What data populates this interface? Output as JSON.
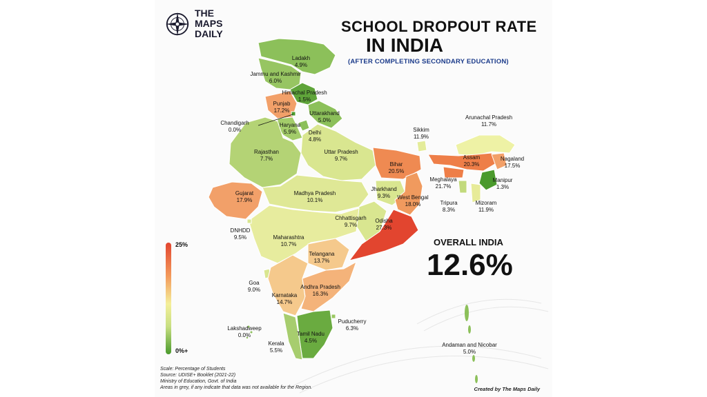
{
  "brand": {
    "name": "THE MAPS DAILY",
    "icon": "compass-icon"
  },
  "title": {
    "line1": "SCHOOL DROPOUT RATE",
    "line2": "IN INDIA",
    "subtitle": "(AFTER COMPLETING SECONDARY EDUCATION)"
  },
  "overall": {
    "label": "OVERALL INDIA",
    "value": "12.6%"
  },
  "scale": {
    "max": "25%",
    "min": "0%+"
  },
  "colors": {
    "high": "#e2452f",
    "mid": "#f4ef9a",
    "low": "#4a9a2c"
  },
  "regions": [
    {
      "name": "Ladakh",
      "value": "4.9%"
    },
    {
      "name": "Jammu and Kashmir",
      "value": "6.0%"
    },
    {
      "name": "Himachal Pradesh",
      "value": "1.5%"
    },
    {
      "name": "Punjab",
      "value": "17.2%"
    },
    {
      "name": "Uttarakhand",
      "value": "5.0%"
    },
    {
      "name": "Chandigarh",
      "value": "0.0%"
    },
    {
      "name": "Haryana",
      "value": "5.9%"
    },
    {
      "name": "Delhi",
      "value": "4.8%"
    },
    {
      "name": "Rajasthan",
      "value": "7.7%"
    },
    {
      "name": "Uttar Pradesh",
      "value": "9.7%"
    },
    {
      "name": "Bihar",
      "value": "20.5%"
    },
    {
      "name": "Sikkim",
      "value": "11.9%"
    },
    {
      "name": "Arunachal Pradesh",
      "value": "11.7%"
    },
    {
      "name": "Assam",
      "value": "20.3%"
    },
    {
      "name": "Nagaland",
      "value": "17.5%"
    },
    {
      "name": "Meghalaya",
      "value": "21.7%"
    },
    {
      "name": "Manipur",
      "value": "1.3%"
    },
    {
      "name": "Tripura",
      "value": "8.3%"
    },
    {
      "name": "Mizoram",
      "value": "11.9%"
    },
    {
      "name": "Gujarat",
      "value": "17.9%"
    },
    {
      "name": "Madhya Pradesh",
      "value": "10.1%"
    },
    {
      "name": "Jharkhand",
      "value": "9.3%"
    },
    {
      "name": "West Bengal",
      "value": "18.0%"
    },
    {
      "name": "Chhattisgarh",
      "value": "9.7%"
    },
    {
      "name": "Odisha",
      "value": "27.3%"
    },
    {
      "name": "DNHDD",
      "value": "9.5%"
    },
    {
      "name": "Maharashtra",
      "value": "10.7%"
    },
    {
      "name": "Telangana",
      "value": "13.7%"
    },
    {
      "name": "Goa",
      "value": "9.0%"
    },
    {
      "name": "Karnataka",
      "value": "14.7%"
    },
    {
      "name": "Andhra Pradesh",
      "value": "16.3%"
    },
    {
      "name": "Lakshadweep",
      "value": "0.0%"
    },
    {
      "name": "Puducherry",
      "value": "6.3%"
    },
    {
      "name": "Tamil Nadu",
      "value": "4.5%"
    },
    {
      "name": "Kerala",
      "value": "5.5%"
    },
    {
      "name": "Andaman and Nicobar",
      "value": "5.0%"
    }
  ],
  "footer": {
    "line1": "Scale: Percentage of Students",
    "line2": "Source: UDISE+ Booklet (2021-22)",
    "line3": "Ministry of Education, Govt. of India",
    "line4": "Areas in grey, if any indicate that data was not available for the Region.",
    "credit": "Created by The Maps Daily"
  }
}
